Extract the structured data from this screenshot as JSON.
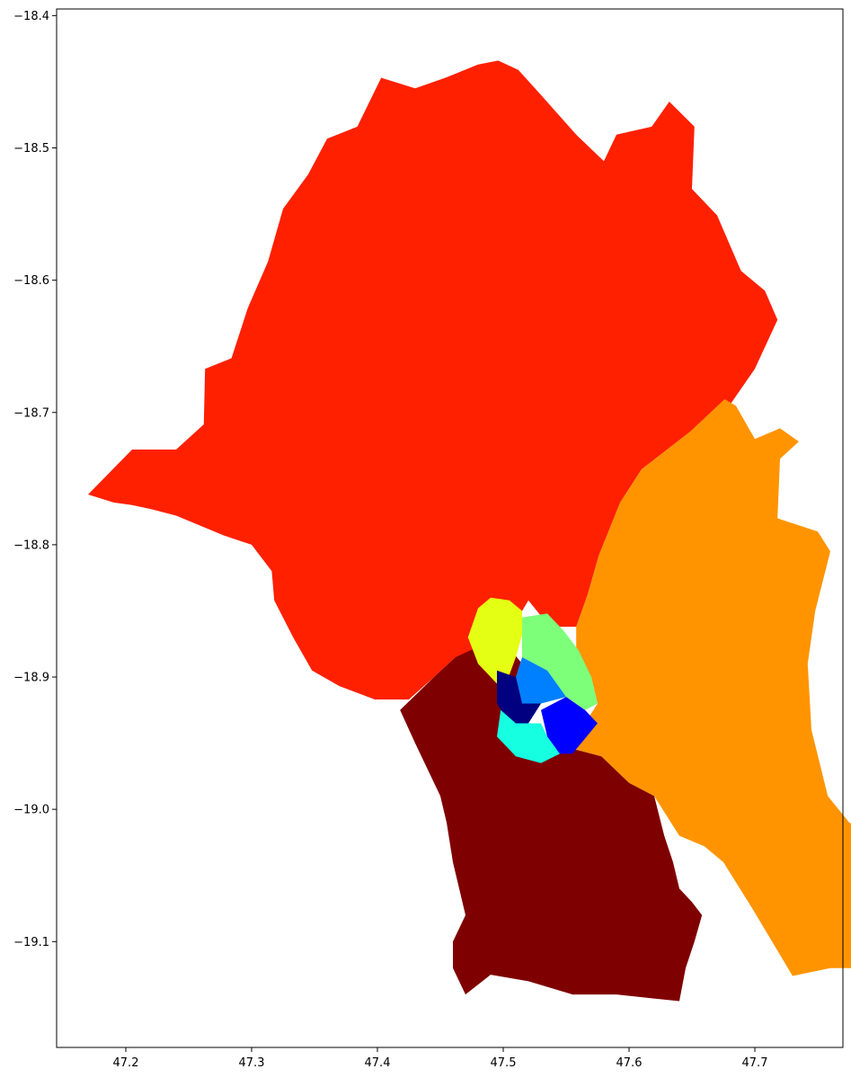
{
  "chart_data": {
    "type": "choropleth",
    "title": "",
    "xlabel": "",
    "ylabel": "",
    "xlim": [
      47.145,
      47.77
    ],
    "ylim": [
      -19.18,
      -18.395
    ],
    "grid": false,
    "legend": "none",
    "colormap": "jet",
    "xticks": [
      {
        "value": 47.2,
        "label": "47.2"
      },
      {
        "value": 47.3,
        "label": "47.3"
      },
      {
        "value": 47.4,
        "label": "47.4"
      },
      {
        "value": 47.5,
        "label": "47.5"
      },
      {
        "value": 47.6,
        "label": "47.6"
      },
      {
        "value": 47.7,
        "label": "47.7"
      }
    ],
    "yticks": [
      {
        "value": -18.4,
        "label": "−18.4"
      },
      {
        "value": -18.5,
        "label": "−18.5"
      },
      {
        "value": -18.6,
        "label": "−18.6"
      },
      {
        "value": -18.7,
        "label": "−18.7"
      },
      {
        "value": -18.8,
        "label": "−18.8"
      },
      {
        "value": -18.9,
        "label": "−18.9"
      },
      {
        "value": -19.0,
        "label": "−19.0"
      },
      {
        "value": -19.1,
        "label": "−19.1"
      }
    ],
    "regions": [
      {
        "id": "region-north",
        "color": "#ff2000",
        "polygon": [
          [
            47.17,
            -18.762
          ],
          [
            47.205,
            -18.728
          ],
          [
            47.24,
            -18.728
          ],
          [
            47.262,
            -18.709
          ],
          [
            47.263,
            -18.667
          ],
          [
            47.284,
            -18.659
          ],
          [
            47.297,
            -18.621
          ],
          [
            47.313,
            -18.586
          ],
          [
            47.325,
            -18.546
          ],
          [
            47.345,
            -18.52
          ],
          [
            47.36,
            -18.493
          ],
          [
            47.384,
            -18.484
          ],
          [
            47.403,
            -18.447
          ],
          [
            47.43,
            -18.455
          ],
          [
            47.454,
            -18.447
          ],
          [
            47.48,
            -18.437
          ],
          [
            47.496,
            -18.434
          ],
          [
            47.512,
            -18.441
          ],
          [
            47.53,
            -18.46
          ],
          [
            47.558,
            -18.49
          ],
          [
            47.58,
            -18.51
          ],
          [
            47.59,
            -18.49
          ],
          [
            47.618,
            -18.484
          ],
          [
            47.632,
            -18.465
          ],
          [
            47.652,
            -18.484
          ],
          [
            47.65,
            -18.531
          ],
          [
            47.67,
            -18.551
          ],
          [
            47.689,
            -18.593
          ],
          [
            47.708,
            -18.608
          ],
          [
            47.718,
            -18.63
          ],
          [
            47.7,
            -18.667
          ],
          [
            47.676,
            -18.7
          ],
          [
            47.648,
            -18.715
          ],
          [
            47.61,
            -18.743
          ],
          [
            47.593,
            -18.768
          ],
          [
            47.576,
            -18.808
          ],
          [
            47.567,
            -18.838
          ],
          [
            47.558,
            -18.862
          ],
          [
            47.537,
            -18.862
          ],
          [
            47.52,
            -18.842
          ],
          [
            47.51,
            -18.858
          ],
          [
            47.505,
            -18.873
          ],
          [
            47.48,
            -18.88
          ],
          [
            47.462,
            -18.885
          ],
          [
            47.445,
            -18.9
          ],
          [
            47.425,
            -18.917
          ],
          [
            47.398,
            -18.917
          ],
          [
            47.37,
            -18.907
          ],
          [
            47.348,
            -18.895
          ],
          [
            47.333,
            -18.87
          ],
          [
            47.318,
            -18.842
          ],
          [
            47.316,
            -18.82
          ],
          [
            47.3,
            -18.8
          ],
          [
            47.278,
            -18.793
          ],
          [
            47.24,
            -18.778
          ],
          [
            47.22,
            -18.773
          ],
          [
            47.205,
            -18.77
          ],
          [
            47.19,
            -18.768
          ]
        ]
      },
      {
        "id": "region-east",
        "color": "#ff9400",
        "polygon": [
          [
            47.558,
            -18.862
          ],
          [
            47.567,
            -18.838
          ],
          [
            47.576,
            -18.808
          ],
          [
            47.593,
            -18.768
          ],
          [
            47.61,
            -18.743
          ],
          [
            47.648,
            -18.715
          ],
          [
            47.676,
            -18.69
          ],
          [
            47.685,
            -18.695
          ],
          [
            47.7,
            -18.72
          ],
          [
            47.72,
            -18.712
          ],
          [
            47.735,
            -18.722
          ],
          [
            47.72,
            -18.735
          ],
          [
            47.718,
            -18.78
          ],
          [
            47.75,
            -18.79
          ],
          [
            47.76,
            -18.805
          ],
          [
            47.748,
            -18.85
          ],
          [
            47.742,
            -18.89
          ],
          [
            47.745,
            -18.94
          ],
          [
            47.758,
            -18.99
          ],
          [
            47.775,
            -19.01
          ],
          [
            47.794,
            -19.02
          ],
          [
            47.8,
            -19.045
          ],
          [
            47.82,
            -19.06
          ],
          [
            47.818,
            -19.095
          ],
          [
            47.8,
            -19.12
          ],
          [
            47.76,
            -19.12
          ],
          [
            47.73,
            -19.126
          ],
          [
            47.72,
            -19.11
          ],
          [
            47.698,
            -19.075
          ],
          [
            47.675,
            -19.04
          ],
          [
            47.66,
            -19.028
          ],
          [
            47.64,
            -19.02
          ],
          [
            47.62,
            -18.99
          ],
          [
            47.6,
            -18.98
          ],
          [
            47.578,
            -18.96
          ],
          [
            47.558,
            -18.955
          ],
          [
            47.565,
            -18.935
          ],
          [
            47.575,
            -18.92
          ],
          [
            47.57,
            -18.9
          ],
          [
            47.558,
            -18.88
          ]
        ]
      },
      {
        "id": "region-south",
        "color": "#7f0000",
        "polygon": [
          [
            47.418,
            -18.925
          ],
          [
            47.445,
            -18.9
          ],
          [
            47.462,
            -18.885
          ],
          [
            47.485,
            -18.875
          ],
          [
            47.505,
            -18.878
          ],
          [
            47.515,
            -18.89
          ],
          [
            47.52,
            -18.905
          ],
          [
            47.515,
            -18.93
          ],
          [
            47.525,
            -18.95
          ],
          [
            47.545,
            -18.955
          ],
          [
            47.558,
            -18.955
          ],
          [
            47.578,
            -18.96
          ],
          [
            47.6,
            -18.98
          ],
          [
            47.62,
            -18.99
          ],
          [
            47.628,
            -19.02
          ],
          [
            47.635,
            -19.04
          ],
          [
            47.64,
            -19.06
          ],
          [
            47.65,
            -19.07
          ],
          [
            47.658,
            -19.08
          ],
          [
            47.652,
            -19.1
          ],
          [
            47.645,
            -19.12
          ],
          [
            47.64,
            -19.145
          ],
          [
            47.62,
            -19.143
          ],
          [
            47.59,
            -19.14
          ],
          [
            47.555,
            -19.14
          ],
          [
            47.52,
            -19.13
          ],
          [
            47.49,
            -19.125
          ],
          [
            47.47,
            -19.14
          ],
          [
            47.46,
            -19.12
          ],
          [
            47.46,
            -19.1
          ],
          [
            47.47,
            -19.08
          ],
          [
            47.465,
            -19.06
          ],
          [
            47.46,
            -19.04
          ],
          [
            47.455,
            -19.01
          ],
          [
            47.45,
            -18.99
          ],
          [
            47.44,
            -18.97
          ],
          [
            47.43,
            -18.95
          ]
        ]
      },
      {
        "id": "region-yellow",
        "color": "#e4ff13",
        "polygon": [
          [
            47.472,
            -18.87
          ],
          [
            47.48,
            -18.848
          ],
          [
            47.49,
            -18.84
          ],
          [
            47.505,
            -18.842
          ],
          [
            47.515,
            -18.85
          ],
          [
            47.515,
            -18.868
          ],
          [
            47.51,
            -18.885
          ],
          [
            47.505,
            -18.898
          ],
          [
            47.495,
            -18.905
          ],
          [
            47.48,
            -18.89
          ]
        ]
      },
      {
        "id": "region-green",
        "color": "#7dff7a",
        "polygon": [
          [
            47.515,
            -18.855
          ],
          [
            47.535,
            -18.852
          ],
          [
            47.548,
            -18.865
          ],
          [
            47.56,
            -18.88
          ],
          [
            47.57,
            -18.9
          ],
          [
            47.575,
            -18.92
          ],
          [
            47.565,
            -18.925
          ],
          [
            47.55,
            -18.915
          ],
          [
            47.535,
            -18.895
          ],
          [
            47.515,
            -18.885
          ]
        ]
      },
      {
        "id": "region-azure",
        "color": "#0080ff",
        "polygon": [
          [
            47.515,
            -18.885
          ],
          [
            47.535,
            -18.895
          ],
          [
            47.55,
            -18.915
          ],
          [
            47.53,
            -18.92
          ],
          [
            47.515,
            -18.92
          ],
          [
            47.51,
            -18.9
          ]
        ]
      },
      {
        "id": "region-navy",
        "color": "#000080",
        "polygon": [
          [
            47.495,
            -18.895
          ],
          [
            47.51,
            -18.9
          ],
          [
            47.515,
            -18.92
          ],
          [
            47.53,
            -18.92
          ],
          [
            47.52,
            -18.935
          ],
          [
            47.505,
            -18.935
          ],
          [
            47.495,
            -18.92
          ]
        ]
      },
      {
        "id": "region-cyan",
        "color": "#16ffe1",
        "polygon": [
          [
            47.498,
            -18.925
          ],
          [
            47.51,
            -18.935
          ],
          [
            47.52,
            -18.935
          ],
          [
            47.53,
            -18.935
          ],
          [
            47.535,
            -18.945
          ],
          [
            47.545,
            -18.958
          ],
          [
            47.53,
            -18.965
          ],
          [
            47.51,
            -18.96
          ],
          [
            47.495,
            -18.945
          ]
        ]
      },
      {
        "id": "region-blue",
        "color": "#0000ff",
        "polygon": [
          [
            47.53,
            -18.925
          ],
          [
            47.55,
            -18.915
          ],
          [
            47.565,
            -18.925
          ],
          [
            47.575,
            -18.935
          ],
          [
            47.555,
            -18.958
          ],
          [
            47.545,
            -18.958
          ],
          [
            47.535,
            -18.945
          ]
        ]
      }
    ]
  }
}
